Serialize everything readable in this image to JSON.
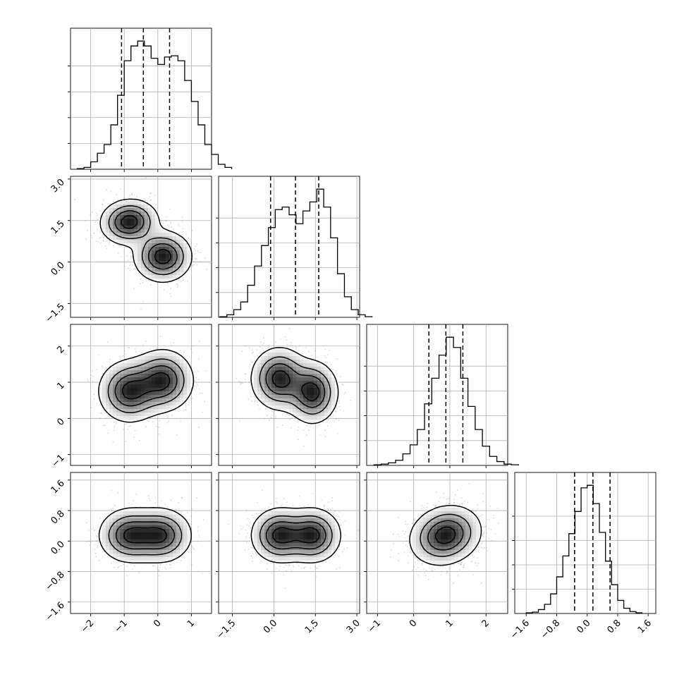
{
  "chart_data": {
    "type": "corner",
    "parameters": [
      {
        "range": [
          -2.6,
          1.6
        ],
        "ticks": [
          -2,
          -1,
          0,
          1
        ],
        "tick_labels": [
          "−2",
          "−1",
          "0",
          "1"
        ],
        "quantiles": [
          -1.08,
          -0.43,
          0.35
        ],
        "hist": {
          "bin_start": -2.4,
          "bin_width": 0.2,
          "counts": [
            0.5,
            1.5,
            6,
            13,
            20,
            36,
            60,
            88,
            100,
            104,
            100,
            90,
            85,
            91,
            92,
            88,
            72,
            55,
            36,
            20,
            12,
            4,
            1.5
          ]
        }
      },
      {
        "range": [
          -2.0,
          3.1
        ],
        "ticks": [
          -1.5,
          0.0,
          1.5,
          3.0
        ],
        "tick_labels": [
          "−1.5",
          "0.0",
          "1.5",
          "3.0"
        ],
        "quantiles": [
          -0.12,
          0.78,
          1.62
        ],
        "hist": {
          "bin_start": -1.95,
          "bin_width": 0.25,
          "counts": [
            0.5,
            2,
            6,
            12,
            25,
            40,
            56,
            70,
            84,
            86,
            80,
            73,
            83,
            90,
            100,
            86,
            62,
            34,
            16,
            6,
            2,
            0.5
          ]
        }
      },
      {
        "range": [
          -1.3,
          2.6
        ],
        "ticks": [
          -1,
          0,
          1,
          2
        ],
        "tick_labels": [
          "−1",
          "0",
          "1",
          "2"
        ],
        "quantiles": [
          0.42,
          0.89,
          1.36
        ],
        "hist": {
          "bin_start": -1.1,
          "bin_width": 0.2,
          "counts": [
            0.5,
            1,
            2,
            4,
            9,
            16,
            28,
            48,
            68,
            86,
            100,
            92,
            68,
            46,
            28,
            15,
            7,
            3,
            1,
            0.5
          ]
        }
      },
      {
        "range": [
          -1.9,
          1.8
        ],
        "ticks": [
          -1.6,
          -0.8,
          0.0,
          0.8,
          1.6
        ],
        "tick_labels": [
          "−1.6",
          "−0.8",
          "0.0",
          "0.8",
          "1.6"
        ],
        "quantiles": [
          -0.33,
          0.15,
          0.6
        ],
        "hist": {
          "bin_start": -1.6,
          "bin_width": 0.16,
          "counts": [
            0.5,
            1,
            3,
            7,
            15,
            28,
            44,
            61,
            78,
            96,
            98,
            84,
            62,
            40,
            22,
            10,
            4,
            1.5,
            0.5
          ]
        }
      }
    ],
    "scatter_style": {
      "contour_levels": 4,
      "density_color": "#000000"
    },
    "grid": true,
    "colors": {
      "line": "#000000",
      "grid": "#b0b0b0",
      "points": "#555555",
      "background": "#ffffff"
    }
  }
}
